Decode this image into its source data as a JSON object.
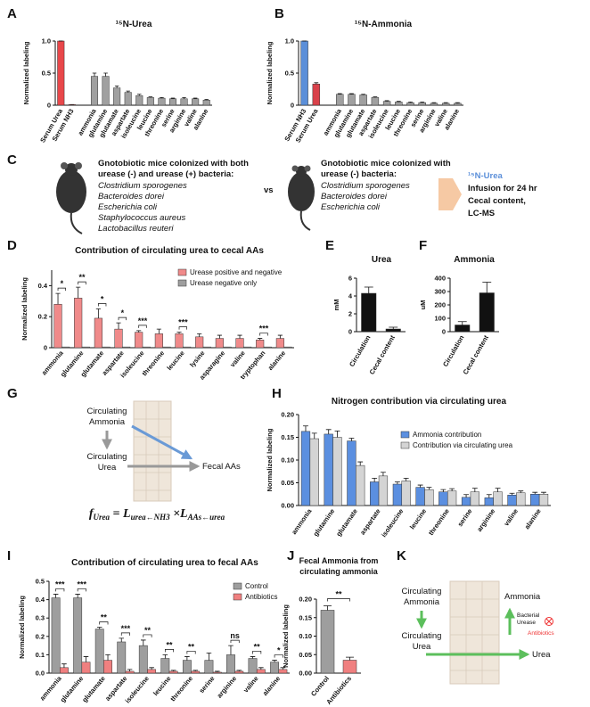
{
  "panel_labels": [
    "A",
    "B",
    "C",
    "D",
    "E",
    "F",
    "G",
    "H",
    "I",
    "J",
    "K"
  ],
  "chart_data": [
    {
      "type": "bar",
      "title": "¹⁵N-Urea",
      "ylabel": "Normalized labeling",
      "categories": [
        "Serum Urea",
        "Serum NH3",
        "ammonia",
        "glutamine",
        "glutamate",
        "aspartate",
        "isoleucine",
        "leucine",
        "threonine",
        "serine",
        "arginine",
        "valine",
        "alanine"
      ],
      "values": [
        1.0,
        0.01,
        0.45,
        0.45,
        0.27,
        0.2,
        0.15,
        0.12,
        0.11,
        0.1,
        0.1,
        0.1,
        0.08
      ],
      "errors": [
        0,
        0,
        0.05,
        0.05,
        0.03,
        0.02,
        0.02,
        0.01,
        0.01,
        0.01,
        0.02,
        0.01,
        0.01
      ],
      "colors": [
        "#e8474a",
        "#e8474a",
        "#a0a0a0",
        "#a0a0a0",
        "#a0a0a0",
        "#a0a0a0",
        "#a0a0a0",
        "#a0a0a0",
        "#a0a0a0",
        "#a0a0a0",
        "#a0a0a0",
        "#a0a0a0",
        "#a0a0a0"
      ],
      "ylim": [
        0,
        1.0
      ],
      "yticks": [
        0,
        0.5,
        {
          "value": 1,
          "label": "1.0"
        }
      ]
    },
    {
      "type": "bar",
      "title": "¹⁵N-Ammonia",
      "ylabel": "Normalized labeling",
      "categories": [
        "Serum NH3",
        "Serum Urea",
        "ammonia",
        "glutamine",
        "glutamate",
        "aspartate",
        "isoleucine",
        "leucine",
        "threonine",
        "serine",
        "arginine",
        "valine",
        "alanine"
      ],
      "values": [
        1.0,
        0.33,
        0.17,
        0.17,
        0.16,
        0.12,
        0.06,
        0.05,
        0.04,
        0.04,
        0.03,
        0.03,
        0.03
      ],
      "errors": [
        0,
        0.02,
        0.01,
        0.01,
        0.01,
        0.01,
        0.01,
        0.01,
        0.01,
        0.01,
        0.01,
        0.01,
        0.01
      ],
      "colors": [
        "#5b8fd9",
        "#d9414a",
        "#a0a0a0",
        "#a0a0a0",
        "#a0a0a0",
        "#a0a0a0",
        "#a0a0a0",
        "#a0a0a0",
        "#a0a0a0",
        "#a0a0a0",
        "#a0a0a0",
        "#a0a0a0",
        "#a0a0a0"
      ],
      "ylim": [
        0,
        1.0
      ],
      "yticks": [
        0,
        0.5,
        {
          "value": 1,
          "label": "1.0"
        }
      ]
    },
    {
      "type": "bar",
      "title": "Contribution of circulating urea to cecal AAs",
      "ylabel": "Normalized labeling",
      "categories": [
        "ammonia",
        "glutamine",
        "glutamate",
        "aspartate",
        "isoleucine",
        "threonine",
        "leucine",
        "lysine",
        "asparagine",
        "valine",
        "tryptophan",
        "alanine"
      ],
      "series": [
        {
          "name": "Urease positive and negative",
          "color": "#f08a8a",
          "values": [
            0.28,
            0.32,
            0.19,
            0.12,
            0.1,
            0.09,
            0.09,
            0.07,
            0.06,
            0.06,
            0.05,
            0.06
          ],
          "errors": [
            0.07,
            0.07,
            0.06,
            0.04,
            0.01,
            0.03,
            0.01,
            0.02,
            0.02,
            0.02,
            0.01,
            0.02
          ]
        },
        {
          "name": "Urease negative only",
          "color": "#9e9e9e",
          "values": [
            0.005,
            0.005,
            0.005,
            0.005,
            0.005,
            0.005,
            0.005,
            0.005,
            0.005,
            0.005,
            0.005,
            0.005
          ]
        }
      ],
      "significance": [
        "*",
        "**",
        "*",
        "*",
        "***",
        null,
        "***",
        null,
        null,
        null,
        "***",
        null
      ],
      "ylim": [
        0,
        0.5
      ],
      "yticks": [
        0,
        0.2,
        0.4
      ]
    },
    {
      "type": "bar",
      "title": "Urea",
      "ylabel": "mM",
      "categories": [
        "Circulation",
        "Cecal content"
      ],
      "values": [
        4.3,
        0.3
      ],
      "errors": [
        0.7,
        0.2
      ],
      "color": "#111111",
      "ylim": [
        0,
        6
      ],
      "yticks": [
        0,
        2,
        4,
        6
      ]
    },
    {
      "type": "bar",
      "title": "Ammonia",
      "ylabel": "uM",
      "categories": [
        "Circulation",
        "Cecal content"
      ],
      "values": [
        50,
        290
      ],
      "errors": [
        25,
        80
      ],
      "color": "#111111",
      "ylim": [
        0,
        400
      ],
      "yticks": [
        0,
        100,
        200,
        300,
        400
      ]
    },
    {
      "type": "bar",
      "title": "Nitrogen contribution via circulating urea",
      "ylabel": "Normalized labeling",
      "categories": [
        "ammonia",
        "glutamine",
        "glutamate",
        "aspartate",
        "isoleucine",
        "leucine",
        "threonine",
        "serine",
        "arginine",
        "valine",
        "alanine"
      ],
      "series": [
        {
          "name": "Ammonia contribution",
          "color": "#5b8fe0",
          "values": [
            0.163,
            0.157,
            0.142,
            0.052,
            0.047,
            0.04,
            0.03,
            0.018,
            0.017,
            0.023,
            0.025
          ],
          "errors": [
            0.012,
            0.01,
            0.006,
            0.008,
            0.005,
            0.005,
            0.005,
            0.006,
            0.007,
            0.004,
            0.004
          ]
        },
        {
          "name": "Contribution via circulating urea",
          "color": "#d4d4d4",
          "values": [
            0.147,
            0.15,
            0.088,
            0.065,
            0.054,
            0.035,
            0.032,
            0.03,
            0.03,
            0.028,
            0.025
          ],
          "errors": [
            0.012,
            0.014,
            0.008,
            0.008,
            0.006,
            0.005,
            0.005,
            0.008,
            0.008,
            0.004,
            0.004
          ]
        }
      ],
      "ylim": [
        0,
        0.2
      ],
      "yticks": [
        {
          "value": 0,
          "label": "0.00"
        },
        {
          "value": 0.05,
          "label": "0.05"
        },
        {
          "value": 0.1,
          "label": "0.10"
        },
        {
          "value": 0.15,
          "label": "0.15"
        },
        {
          "value": 0.2,
          "label": "0.20"
        }
      ]
    },
    {
      "type": "bar",
      "title": "Contribution of circulating urea to fecal AAs",
      "ylabel": "Normalized labeling",
      "categories": [
        "ammonia",
        "glutamine",
        "glutamate",
        "aspartate",
        "isoleucine",
        "leucine",
        "threonine",
        "serine",
        "arginine",
        "valine",
        "alanine"
      ],
      "series": [
        {
          "name": "Control",
          "color": "#9e9e9e",
          "values": [
            0.41,
            0.41,
            0.24,
            0.17,
            0.15,
            0.08,
            0.07,
            0.07,
            0.1,
            0.08,
            0.06
          ],
          "errors": [
            0.02,
            0.02,
            0.01,
            0.02,
            0.03,
            0.02,
            0.02,
            0.04,
            0.05,
            0.01,
            0.01
          ]
        },
        {
          "name": "Antibiotics",
          "color": "#f08080",
          "values": [
            0.03,
            0.06,
            0.07,
            0.01,
            0.02,
            0.01,
            0.01,
            0.005,
            0.01,
            0.02,
            0.02
          ],
          "errors": [
            0.02,
            0.03,
            0.03,
            0.01,
            0.01,
            0.005,
            0.005,
            0.005,
            0.005,
            0.01,
            0.01
          ]
        }
      ],
      "significance": [
        "***",
        "***",
        "**",
        "***",
        "**",
        "**",
        "**",
        null,
        "ns",
        "**",
        "*"
      ],
      "ylim": [
        0,
        0.5
      ],
      "yticks": [
        {
          "value": 0,
          "label": "0.0"
        },
        0.1,
        0.2,
        0.3,
        0.4,
        0.5
      ]
    },
    {
      "type": "bar",
      "title": [
        "Fecal Ammonia from",
        "circulating ammonia"
      ],
      "ylabel": "Normalized labeling",
      "categories": [
        "Control",
        "Antibiotics"
      ],
      "values": [
        0.17,
        0.035
      ],
      "errors": [
        0.012,
        0.008
      ],
      "colors": [
        "#9e9e9e",
        "#f08080"
      ],
      "significance": "**",
      "ylim": [
        0,
        0.2
      ],
      "yticks": [
        {
          "value": 0,
          "label": "0.00"
        },
        {
          "value": 0.05,
          "label": "0.05"
        },
        {
          "value": 0.1,
          "label": "0.10"
        },
        {
          "value": 0.15,
          "label": "0.15"
        },
        {
          "value": 0.2,
          "label": "0.20"
        }
      ]
    }
  ],
  "panels": {
    "C": {
      "left_heading": [
        "Gnotobiotic mice colonized with both",
        "urease (-) and urease (+) bacteria:"
      ],
      "left_species": [
        "Clostridium sporogenes",
        "Bacteroides dorei",
        "Escherichia coli",
        "Staphylococcus aureus",
        "Lactobacillus reuteri"
      ],
      "vs": "vs",
      "right_heading": [
        "Gnotobiotic mice colonized with",
        "urease (-) bacteria:"
      ],
      "right_species": [
        "Clostridium sporogenes",
        "Bacteroides dorei",
        "Escherichia coli"
      ],
      "tracer": "¹⁵N-Urea",
      "procedure": [
        "Infusion for 24 hr",
        "Cecal content,",
        "LC-MS"
      ]
    },
    "G": {
      "ammonia": [
        "Circulating",
        "Ammonia"
      ],
      "urea": [
        "Circulating",
        "Urea"
      ],
      "target": "Fecal AAs",
      "formula": [
        "f",
        "Urea",
        " = L",
        "urea←NH3",
        " ×L",
        "AAs←urea"
      ]
    },
    "K": {
      "ammonia": [
        "Circulating",
        "Ammonia"
      ],
      "urea": [
        "Circulating",
        "Urea"
      ],
      "product_ammonia": "Ammonia",
      "enzyme": [
        "Bacterial",
        "Urease"
      ],
      "inhibitor": "Antibiotics",
      "product_urea": "Urea"
    }
  }
}
